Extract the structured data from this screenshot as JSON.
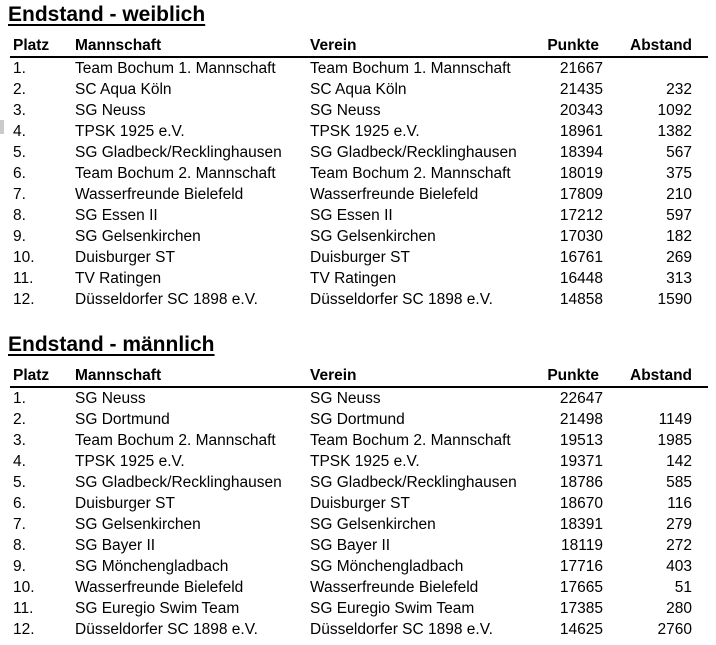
{
  "document": {
    "background": "#ffffff",
    "text_color": "#000000",
    "rule_color": "#000000"
  },
  "tables": [
    {
      "title": "Endstand - weiblich",
      "columns": [
        "Platz",
        "Mannschaft",
        "Verein",
        "Punkte",
        "Abstand"
      ],
      "rows": [
        {
          "platz": "1.",
          "mannschaft": "Team Bochum 1. Mannschaft",
          "verein": "Team Bochum 1. Mannschaft",
          "punkte": 21667,
          "abstand": null
        },
        {
          "platz": "2.",
          "mannschaft": "SC Aqua Köln",
          "verein": "SC Aqua Köln",
          "punkte": 21435,
          "abstand": 232
        },
        {
          "platz": "3.",
          "mannschaft": "SG Neuss",
          "verein": "SG Neuss",
          "punkte": 20343,
          "abstand": 1092
        },
        {
          "platz": "4.",
          "mannschaft": "TPSK 1925 e.V.",
          "verein": "TPSK 1925 e.V.",
          "punkte": 18961,
          "abstand": 1382
        },
        {
          "platz": "5.",
          "mannschaft": "SG Gladbeck/Recklinghausen",
          "verein": "SG Gladbeck/Recklinghausen",
          "punkte": 18394,
          "abstand": 567
        },
        {
          "platz": "6.",
          "mannschaft": "Team Bochum 2. Mannschaft",
          "verein": "Team Bochum 2. Mannschaft",
          "punkte": 18019,
          "abstand": 375
        },
        {
          "platz": "7.",
          "mannschaft": "Wasserfreunde Bielefeld",
          "verein": "Wasserfreunde Bielefeld",
          "punkte": 17809,
          "abstand": 210
        },
        {
          "platz": "8.",
          "mannschaft": "SG Essen II",
          "verein": "SG Essen II",
          "punkte": 17212,
          "abstand": 597
        },
        {
          "platz": "9.",
          "mannschaft": "SG Gelsenkirchen",
          "verein": "SG Gelsenkirchen",
          "punkte": 17030,
          "abstand": 182
        },
        {
          "platz": "10.",
          "mannschaft": "Duisburger ST",
          "verein": "Duisburger ST",
          "punkte": 16761,
          "abstand": 269
        },
        {
          "platz": "11.",
          "mannschaft": "TV Ratingen",
          "verein": "TV Ratingen",
          "punkte": 16448,
          "abstand": 313
        },
        {
          "platz": "12.",
          "mannschaft": "Düsseldorfer SC 1898 e.V.",
          "verein": "Düsseldorfer SC 1898 e.V.",
          "punkte": 14858,
          "abstand": 1590
        }
      ]
    },
    {
      "title": "Endstand - männlich",
      "columns": [
        "Platz",
        "Mannschaft",
        "Verein",
        "Punkte",
        "Abstand"
      ],
      "rows": [
        {
          "platz": "1.",
          "mannschaft": "SG Neuss",
          "verein": "SG Neuss",
          "punkte": 22647,
          "abstand": null
        },
        {
          "platz": "2.",
          "mannschaft": "SG Dortmund",
          "verein": "SG Dortmund",
          "punkte": 21498,
          "abstand": 1149
        },
        {
          "platz": "3.",
          "mannschaft": "Team Bochum 2. Mannschaft",
          "verein": "Team Bochum 2. Mannschaft",
          "punkte": 19513,
          "abstand": 1985
        },
        {
          "platz": "4.",
          "mannschaft": "TPSK 1925 e.V.",
          "verein": "TPSK 1925 e.V.",
          "punkte": 19371,
          "abstand": 142
        },
        {
          "platz": "5.",
          "mannschaft": "SG Gladbeck/Recklinghausen",
          "verein": "SG Gladbeck/Recklinghausen",
          "punkte": 18786,
          "abstand": 585
        },
        {
          "platz": "6.",
          "mannschaft": "Duisburger ST",
          "verein": "Duisburger ST",
          "punkte": 18670,
          "abstand": 116
        },
        {
          "platz": "7.",
          "mannschaft": "SG Gelsenkirchen",
          "verein": "SG Gelsenkirchen",
          "punkte": 18391,
          "abstand": 279
        },
        {
          "platz": "8.",
          "mannschaft": "SG Bayer II",
          "verein": "SG Bayer II",
          "punkte": 18119,
          "abstand": 272
        },
        {
          "platz": "9.",
          "mannschaft": "SG Mönchengladbach",
          "verein": "SG Mönchengladbach",
          "punkte": 17716,
          "abstand": 403
        },
        {
          "platz": "10.",
          "mannschaft": "Wasserfreunde Bielefeld",
          "verein": "Wasserfreunde Bielefeld",
          "punkte": 17665,
          "abstand": 51
        },
        {
          "platz": "11.",
          "mannschaft": "SG Euregio Swim Team",
          "verein": "SG Euregio Swim Team",
          "punkte": 17385,
          "abstand": 280
        },
        {
          "platz": "12.",
          "mannschaft": "Düsseldorfer SC 1898 e.V.",
          "verein": "Düsseldorfer SC 1898 e.V.",
          "punkte": 14625,
          "abstand": 2760
        }
      ]
    }
  ]
}
